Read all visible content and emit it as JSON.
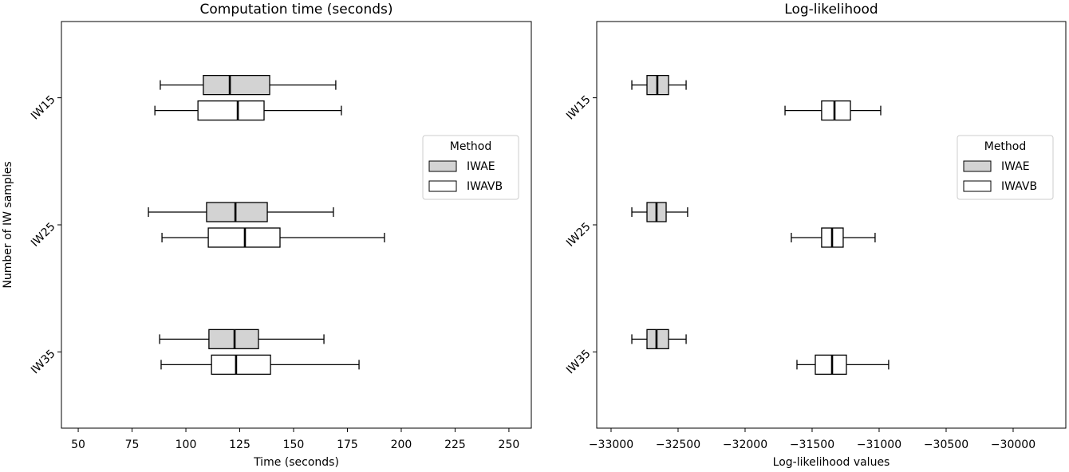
{
  "chart_data": [
    {
      "type": "boxplot",
      "title": "Computation time (seconds)",
      "x_label": "Time (seconds)",
      "y_label": "Number of IW samples",
      "categories": [
        "IW15",
        "IW25",
        "IW35"
      ],
      "legend_title": "Method",
      "legend": "right",
      "xlim": [
        42.2,
        260.4
      ],
      "xticks": [
        50,
        75,
        100,
        125,
        150,
        175,
        200,
        225,
        250
      ],
      "series": [
        {
          "name": "IWAE",
          "color": "#d3d3d3",
          "values": [
            [
              88.1,
              108.1,
              120.4,
              138.9,
              169.6
            ],
            [
              82.6,
              109.6,
              123,
              137.8,
              168.5
            ],
            [
              87.8,
              110.7,
              122.6,
              133.7,
              164.1
            ]
          ]
        },
        {
          "name": "IWAVB",
          "color": "#ffffff",
          "values": [
            [
              85.6,
              105.6,
              124.1,
              136.3,
              172.2
            ],
            [
              88.9,
              110.4,
              127.4,
              143.7,
              192.2
            ],
            [
              88.5,
              111.9,
              123.3,
              139.3,
              180.4
            ]
          ]
        }
      ]
    },
    {
      "type": "boxplot",
      "title": "Log-likelihood",
      "x_label": "Log-likelihood values",
      "categories": [
        "IW15",
        "IW25",
        "IW35"
      ],
      "legend_title": "Method",
      "legend": "right",
      "xlim": [
        -33107,
        -29607
      ],
      "xticks": [
        {
          "value": -33000,
          "label": "−33000"
        },
        {
          "value": -32500,
          "label": "−32500"
        },
        {
          "value": -32000,
          "label": "−32000"
        },
        {
          "value": -31500,
          "label": "−31500"
        },
        {
          "value": -31000,
          "label": "−31000"
        },
        {
          "value": -30500,
          "label": "−30500"
        },
        {
          "value": -30000,
          "label": "−30000"
        }
      ],
      "series": [
        {
          "name": "IWAE",
          "color": "#d3d3d3",
          "values": [
            [
              -32845,
              -32732,
              -32655,
              -32571,
              -32440
            ],
            [
              -32845,
              -32732,
              -32661,
              -32589,
              -32429
            ],
            [
              -32845,
              -32732,
              -32661,
              -32571,
              -32440
            ]
          ]
        },
        {
          "name": "IWAVB",
          "color": "#ffffff",
          "values": [
            [
              -31702,
              -31429,
              -31333,
              -31214,
              -30988
            ],
            [
              -31655,
              -31429,
              -31351,
              -31268,
              -31030
            ],
            [
              -31613,
              -31476,
              -31351,
              -31244,
              -30929
            ]
          ]
        }
      ]
    }
  ]
}
